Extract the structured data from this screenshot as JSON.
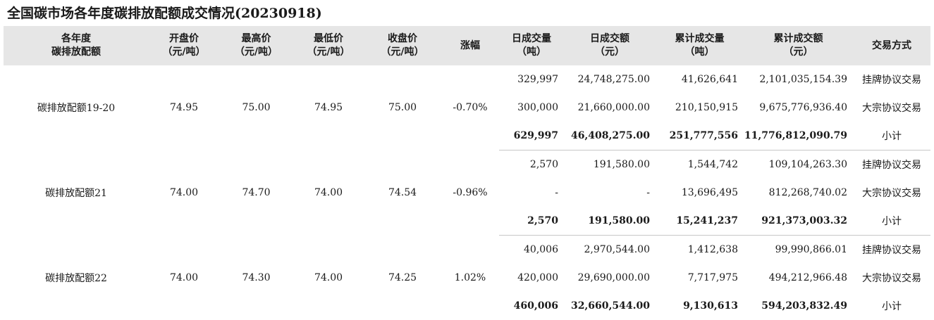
{
  "title": "全国碳市场各年度碳排放配额成交情况(20230918)",
  "headers": [
    "各年度\n碳排放配额",
    "开盘价\n（元/吨）",
    "最高价\n（元/吨）",
    "最低价\n（元/吨）",
    "收盘价\n（元/吨）",
    "涨幅",
    "日成交量\n（吨）",
    "日成交额\n（元）",
    "累计成交量\n（吨）",
    "累计成交额\n（元）",
    "交易方式"
  ],
  "groups": [
    {
      "name": "碳排放配额19-20",
      "open": "74.95",
      "high": "75.00",
      "low": "74.95",
      "close": "75.00",
      "change": "-0.70%",
      "rows": [
        {
          "vol": "329,997",
          "amt": "24,748,275.00",
          "cum_vol": "41,626,641",
          "cum_amt": "2,101,035,154.39",
          "method": "挂牌协议交易"
        },
        {
          "vol": "300,000",
          "amt": "21,660,000.00",
          "cum_vol": "210,150,915",
          "cum_amt": "9,675,776,936.40",
          "method": "大宗协议交易"
        },
        {
          "vol": "629,997",
          "amt": "46,408,275.00",
          "cum_vol": "251,777,556",
          "cum_amt": "11,776,812,090.79",
          "method": "小计"
        }
      ]
    },
    {
      "name": "碳排放配额21",
      "open": "74.00",
      "high": "74.70",
      "low": "74.00",
      "close": "74.54",
      "change": "-0.96%",
      "rows": [
        {
          "vol": "2,570",
          "amt": "191,580.00",
          "cum_vol": "1,544,742",
          "cum_amt": "109,104,263.30",
          "method": "挂牌协议交易"
        },
        {
          "vol": "-",
          "amt": "-",
          "cum_vol": "13,696,495",
          "cum_amt": "812,268,740.02",
          "method": "大宗协议交易"
        },
        {
          "vol": "2,570",
          "amt": "191,580.00",
          "cum_vol": "15,241,237",
          "cum_amt": "921,373,003.32",
          "method": "小计"
        }
      ]
    },
    {
      "name": "碳排放配额22",
      "open": "74.00",
      "high": "74.30",
      "low": "74.00",
      "close": "74.25",
      "change": "1.02%",
      "rows": [
        {
          "vol": "40,006",
          "amt": "2,970,544.00",
          "cum_vol": "1,412,638",
          "cum_amt": "99,990,866.01",
          "method": "挂牌协议交易"
        },
        {
          "vol": "420,000",
          "amt": "29,690,000.00",
          "cum_vol": "7,717,975",
          "cum_amt": "494,212,966.48",
          "method": "大宗协议交易"
        },
        {
          "vol": "460,006",
          "amt": "32,660,544.00",
          "cum_vol": "9,130,613",
          "cum_amt": "594,203,832.49",
          "method": "小计"
        }
      ]
    }
  ]
}
